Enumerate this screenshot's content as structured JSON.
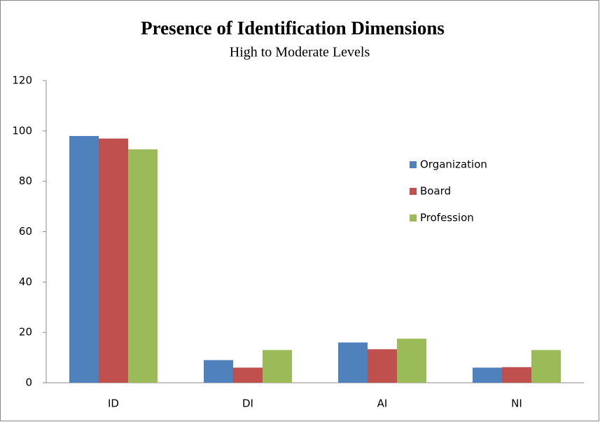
{
  "chart_data": {
    "type": "bar",
    "title": "Presence of Identification Dimensions",
    "subtitle": "High to Moderate Levels",
    "categories": [
      "ID",
      "DI",
      "AI",
      "NI"
    ],
    "series": [
      {
        "name": "Organization",
        "color": "#4f81bd",
        "values": [
          98,
          9,
          16,
          6
        ]
      },
      {
        "name": "Board",
        "color": "#c0504d",
        "values": [
          97,
          6,
          13.3,
          6.2
        ]
      },
      {
        "name": "Profession",
        "color": "#9bbb59",
        "values": [
          92.7,
          13,
          17.5,
          13
        ]
      }
    ],
    "ylim": [
      0,
      120
    ],
    "yticks": [
      0,
      20,
      40,
      60,
      80,
      100,
      120
    ],
    "grid": false,
    "legend": "right"
  }
}
